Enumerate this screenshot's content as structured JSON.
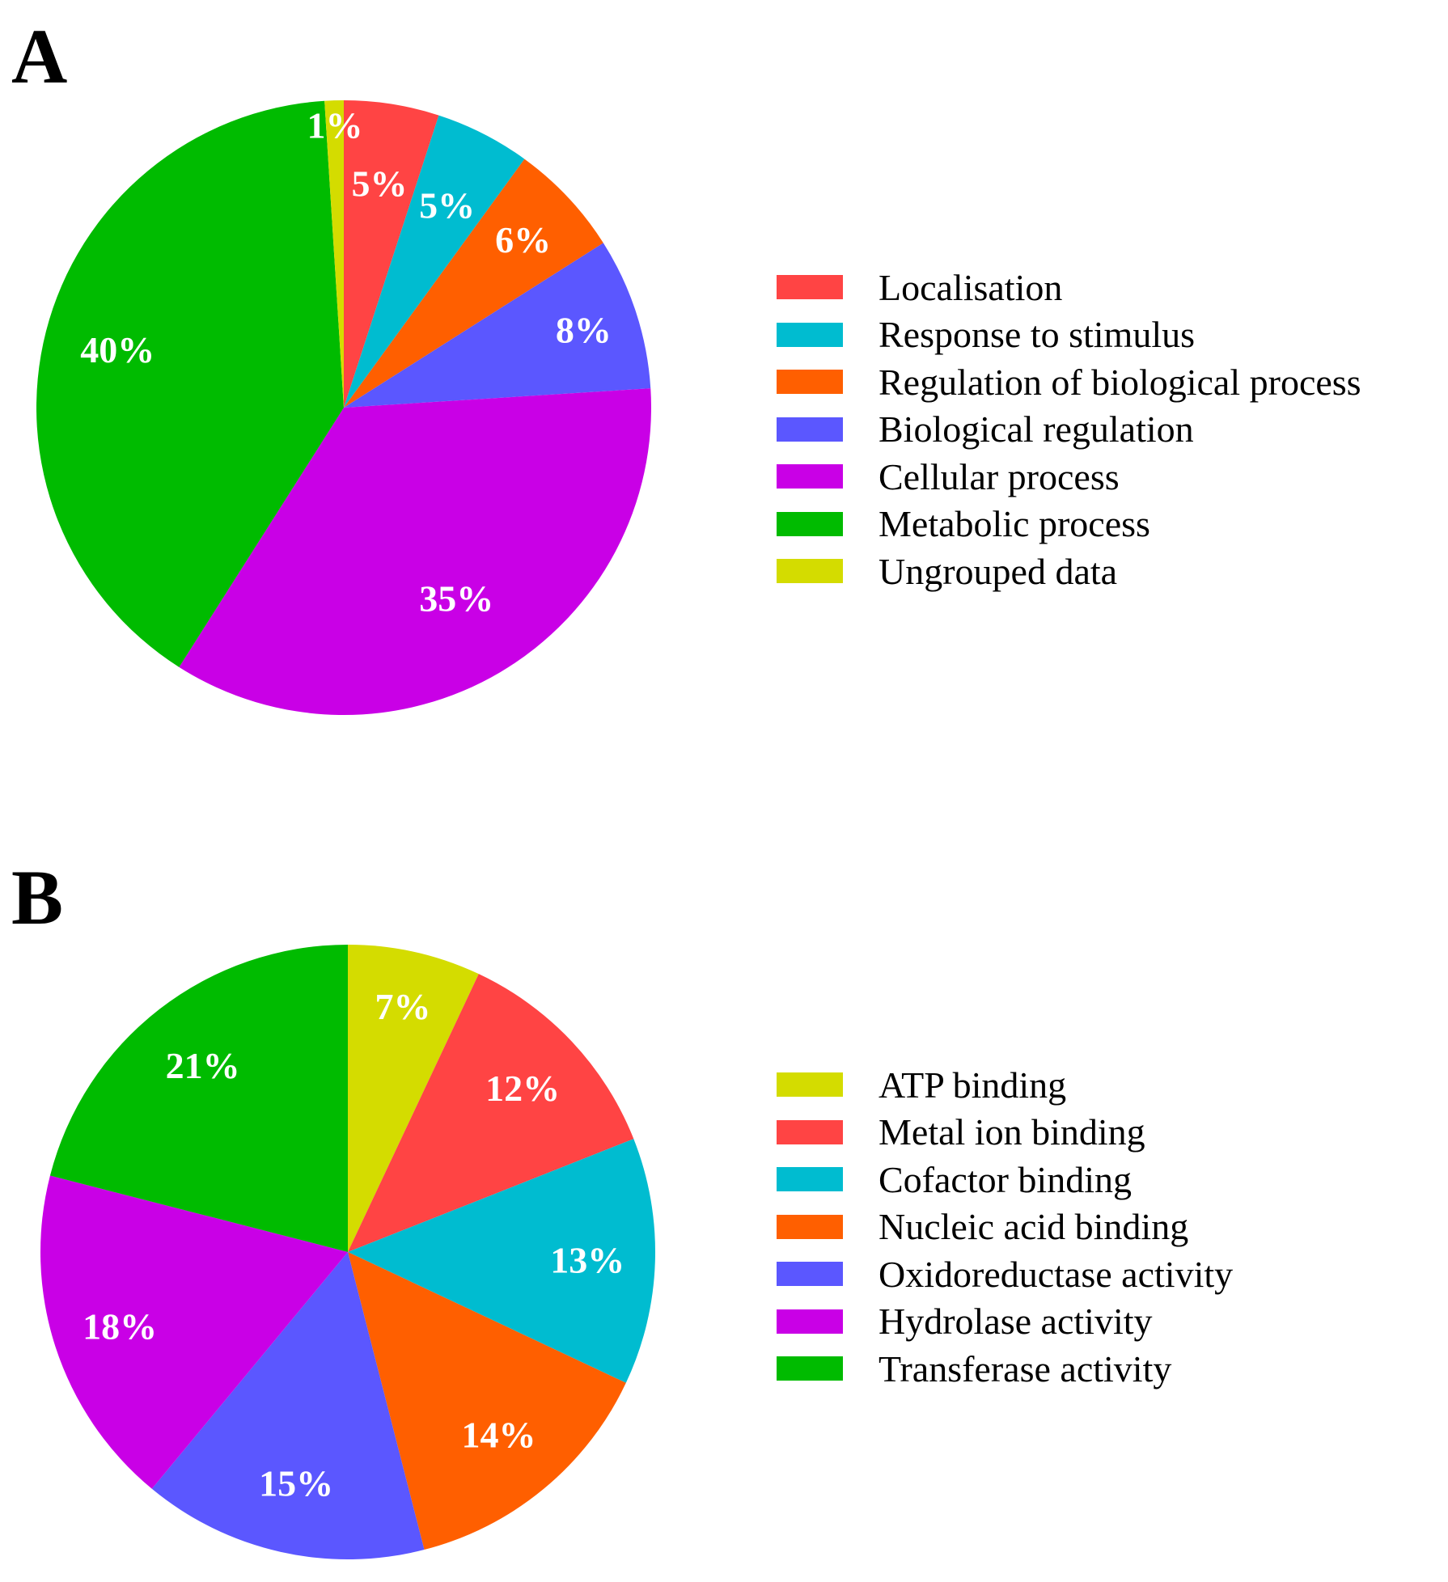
{
  "chart_data": [
    {
      "type": "pie",
      "panel": "A",
      "title": "",
      "legend_position": "right",
      "start": "12 o'clock, clockwise",
      "slices": [
        {
          "label": "Localisation",
          "value": 5,
          "value_label": "5%",
          "color": "#ff4444"
        },
        {
          "label": "Response to stimulus",
          "value": 5,
          "value_label": "5%",
          "color": "#00bcd0"
        },
        {
          "label": "Regulation of biological process",
          "value": 6,
          "value_label": "6%",
          "color": "#ff5f00"
        },
        {
          "label": "Biological regulation",
          "value": 8,
          "value_label": "8%",
          "color": "#5b57ff"
        },
        {
          "label": "Cellular process",
          "value": 35,
          "value_label": "35%",
          "color": "#c900e6"
        },
        {
          "label": "Metabolic process",
          "value": 40,
          "value_label": "40%",
          "color": "#00bb00"
        },
        {
          "label": "Ungrouped data",
          "value": 1,
          "value_label": "1%",
          "color": "#d4dc00"
        }
      ]
    },
    {
      "type": "pie",
      "panel": "B",
      "title": "",
      "legend_position": "right",
      "start": "12 o'clock, clockwise",
      "slices": [
        {
          "label": "ATP binding",
          "value": 7,
          "value_label": "7%",
          "color": "#d4dc00"
        },
        {
          "label": "Metal ion binding",
          "value": 12,
          "value_label": "12%",
          "color": "#ff4444"
        },
        {
          "label": "Cofactor binding",
          "value": 13,
          "value_label": "13%",
          "color": "#00bcd0"
        },
        {
          "label": "Nucleic acid binding",
          "value": 14,
          "value_label": "14%",
          "color": "#ff5f00"
        },
        {
          "label": "Oxidoreductase activity",
          "value": 15,
          "value_label": "15%",
          "color": "#5b57ff"
        },
        {
          "label": "Hydrolase activity",
          "value": 18,
          "value_label": "18%",
          "color": "#c900e6"
        },
        {
          "label": "Transferase activity",
          "value": 21,
          "value_label": "21%",
          "color": "#00bb00"
        }
      ]
    }
  ],
  "panels": {
    "a_letter": "A",
    "b_letter": "B"
  }
}
